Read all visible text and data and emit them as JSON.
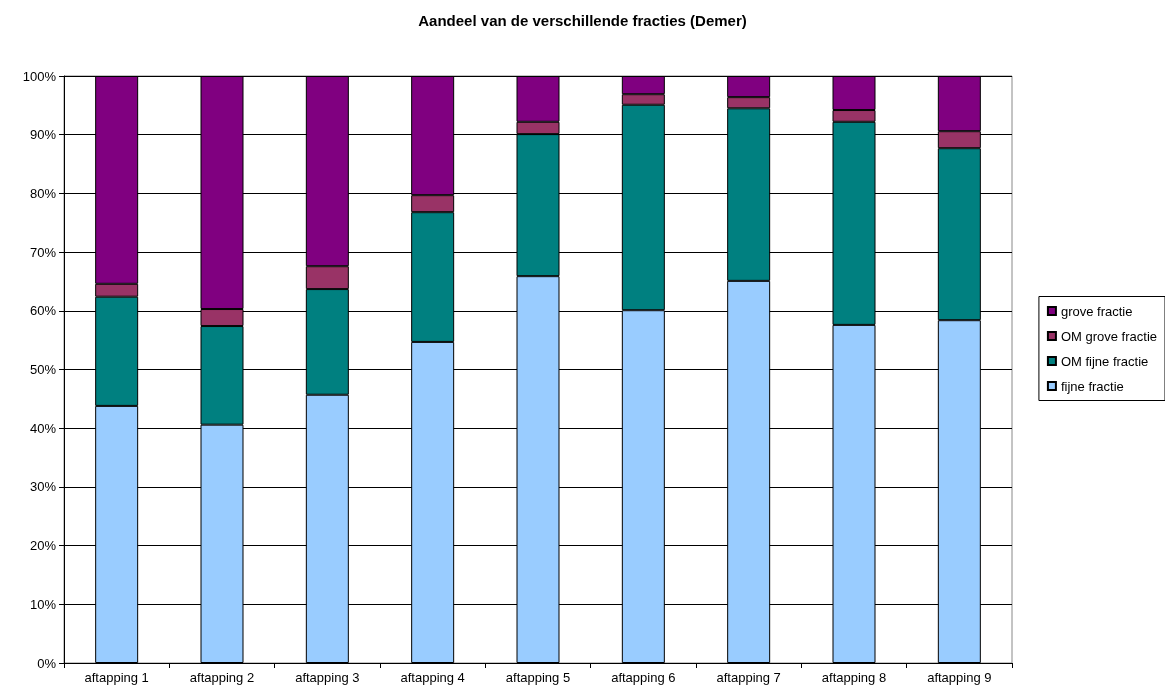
{
  "chart_data": {
    "type": "bar",
    "title": "Aandeel van de verschillende fracties (Demer)",
    "stacked": true,
    "categories": [
      "aftapping 1",
      "aftapping 2",
      "aftapping 3",
      "aftapping 4",
      "aftapping 5",
      "aftapping 6",
      "aftapping 7",
      "aftapping 8",
      "aftapping 9"
    ],
    "series": [
      {
        "name": "fijne fractie",
        "color": "#99ccff",
        "values": [
          43.8,
          40.6,
          45.7,
          54.7,
          65.9,
          60.1,
          65.1,
          57.6,
          58.4
        ]
      },
      {
        "name": "OM fijne fractie",
        "color": "#008080",
        "values": [
          18.6,
          16.8,
          18.0,
          22.1,
          24.2,
          35.0,
          29.4,
          34.6,
          29.3
        ]
      },
      {
        "name": "OM grove fractie",
        "color": "#993366",
        "values": [
          2.2,
          2.9,
          3.9,
          2.9,
          2.1,
          1.8,
          1.9,
          2.0,
          2.9
        ]
      },
      {
        "name": "grove fractie",
        "color": "#800080",
        "values": [
          35.4,
          39.7,
          32.4,
          20.3,
          7.8,
          3.1,
          3.6,
          5.8,
          9.4
        ]
      }
    ],
    "ylim": [
      0,
      100
    ],
    "yticks": [
      {
        "value": 0,
        "label": "0%"
      },
      {
        "value": 10,
        "label": "10%"
      },
      {
        "value": 20,
        "label": "20%"
      },
      {
        "value": 30,
        "label": "30%"
      },
      {
        "value": 40,
        "label": "40%"
      },
      {
        "value": 50,
        "label": "50%"
      },
      {
        "value": 60,
        "label": "60%"
      },
      {
        "value": 70,
        "label": "70%"
      },
      {
        "value": 80,
        "label": "80%"
      },
      {
        "value": 90,
        "label": "90%"
      },
      {
        "value": 100,
        "label": "100%"
      }
    ],
    "grid": "y",
    "legend": "right"
  }
}
